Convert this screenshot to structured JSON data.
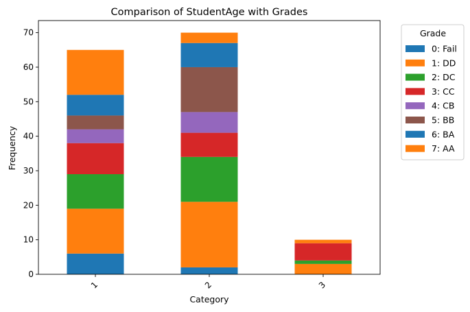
{
  "chart_data": {
    "type": "bar",
    "stacked": true,
    "title": "Comparison of StudentAge with Grades",
    "xlabel": "Category",
    "ylabel": "Frequency",
    "categories": [
      "1",
      "2",
      "3"
    ],
    "ylim": [
      0,
      73.5
    ],
    "yticks": [
      "0",
      "10",
      "20",
      "30",
      "40",
      "50",
      "60",
      "70"
    ],
    "legend_title": "Grade",
    "legend_position": "outside-right",
    "series": [
      {
        "name": "0: Fail",
        "color": "#1f77b4",
        "values": [
          6,
          2,
          0
        ]
      },
      {
        "name": "1: DD",
        "color": "#ff7f0e",
        "values": [
          13,
          19,
          3
        ]
      },
      {
        "name": "2: DC",
        "color": "#2ca02c",
        "values": [
          10,
          13,
          1
        ]
      },
      {
        "name": "3: CC",
        "color": "#d62728",
        "values": [
          9,
          7,
          5
        ]
      },
      {
        "name": "4: CB",
        "color": "#9467bd",
        "values": [
          4,
          6,
          0
        ]
      },
      {
        "name": "5: BB",
        "color": "#8c564b",
        "values": [
          4,
          13,
          0
        ]
      },
      {
        "name": "6: BA",
        "color": "#1f77b4",
        "values": [
          6,
          7,
          0
        ]
      },
      {
        "name": "7: AA",
        "color": "#ff7f0e",
        "values": [
          13,
          3,
          1
        ]
      }
    ]
  }
}
